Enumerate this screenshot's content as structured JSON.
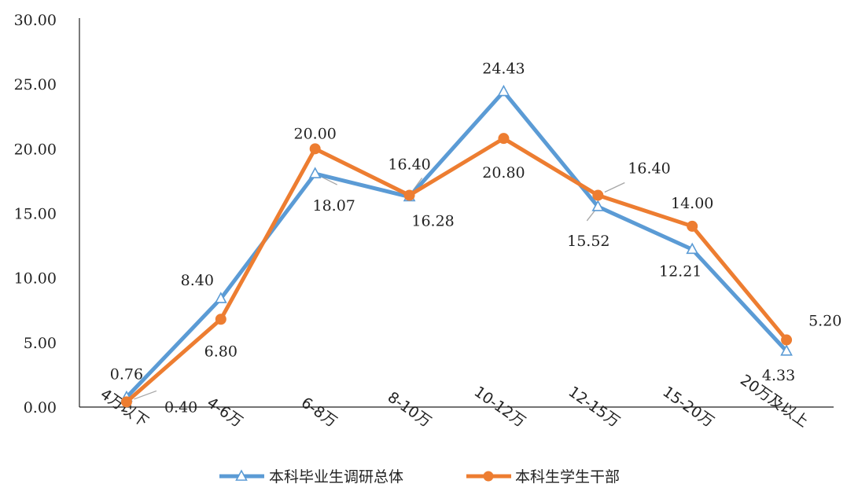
{
  "chart_data": {
    "type": "line",
    "categories": [
      "4万以下",
      "4-6万",
      "6-8万",
      "8-10万",
      "10-12万",
      "12-15万",
      "15-20万",
      "20万及以上"
    ],
    "ylim": [
      0,
      30
    ],
    "yticks": [
      "0.00",
      "5.00",
      "10.00",
      "15.00",
      "20.00",
      "25.00",
      "30.00"
    ],
    "grid": false,
    "legend_position": "bottom",
    "series": [
      {
        "name": "本科毕业生调研总体",
        "color": "#5B9BD5",
        "marker": "triangle-open",
        "values": [
          0.76,
          8.4,
          18.07,
          16.28,
          24.43,
          15.52,
          12.21,
          4.33
        ],
        "labels": [
          "0.76",
          "8.40",
          "18.07",
          "16.28",
          "24.43",
          "15.52",
          "12.21",
          "4.33"
        ]
      },
      {
        "name": "本科生学生干部",
        "color": "#ED7D31",
        "marker": "circle",
        "values": [
          0.4,
          6.8,
          20.0,
          16.4,
          20.8,
          16.4,
          14.0,
          5.2
        ],
        "labels": [
          "0.40",
          "6.80",
          "20.00",
          "16.40",
          "20.80",
          "16.40",
          "14.00",
          "5.20"
        ]
      }
    ]
  }
}
